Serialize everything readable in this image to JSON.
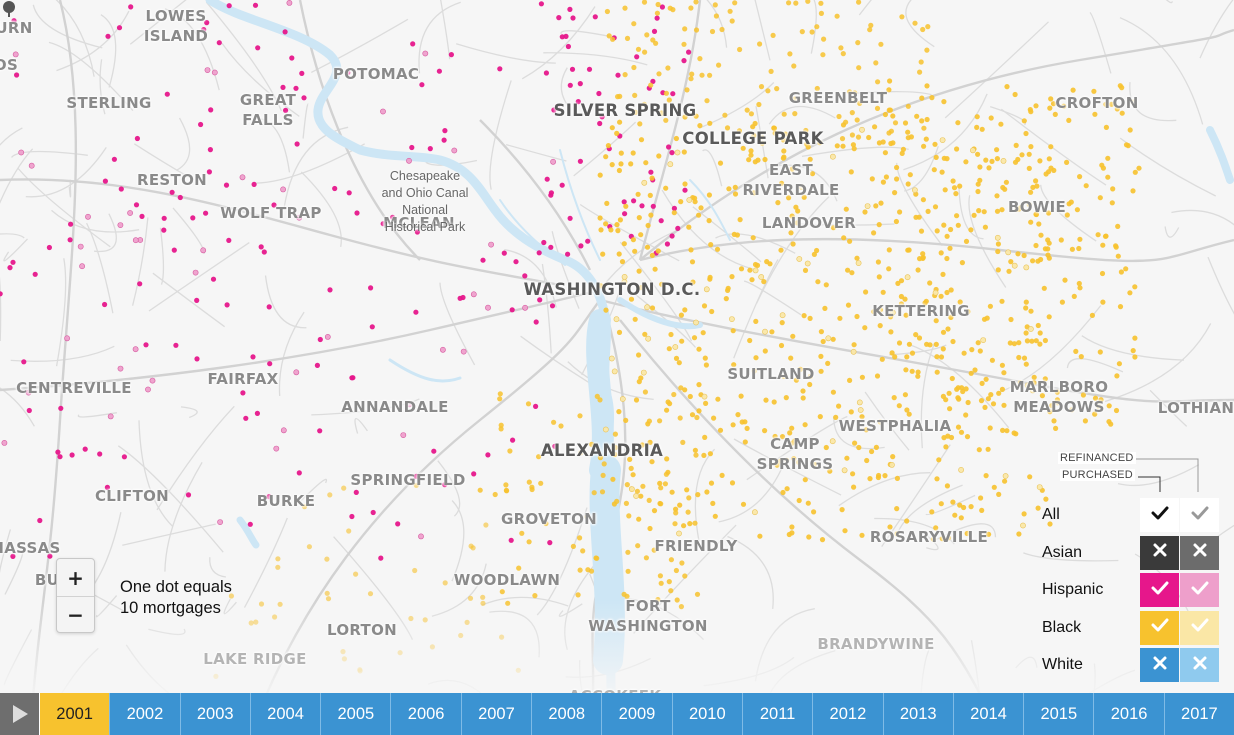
{
  "map": {
    "places": [
      {
        "id": "lowes-island",
        "label": "LOWES\nISLAND",
        "style": "normal"
      },
      {
        "id": "potomac",
        "label": "POTOMAC",
        "style": "normal"
      },
      {
        "id": "sterling",
        "label": "STERLING",
        "style": "normal"
      },
      {
        "id": "great-falls",
        "label": "GREAT\nFALLS",
        "style": "normal"
      },
      {
        "id": "reston",
        "label": "RESTON",
        "style": "normal"
      },
      {
        "id": "wolf-trap",
        "label": "WOLF TRAP",
        "style": "normal"
      },
      {
        "id": "mclean",
        "label": "MCLEAN",
        "style": "normal"
      },
      {
        "id": "silver-spring",
        "label": "SILVER SPRING",
        "style": "big"
      },
      {
        "id": "greenbelt",
        "label": "GREENBELT",
        "style": "normal"
      },
      {
        "id": "crofton",
        "label": "CROFTON",
        "style": "normal"
      },
      {
        "id": "college-park",
        "label": "COLLEGE PARK",
        "style": "big"
      },
      {
        "id": "east-riverdale",
        "label": "EAST\nRIVERDALE",
        "style": "normal"
      },
      {
        "id": "landover",
        "label": "LANDOVER",
        "style": "normal"
      },
      {
        "id": "bowie",
        "label": "BOWIE",
        "style": "normal"
      },
      {
        "id": "washington-dc",
        "label": "WASHINGTON D.C.",
        "style": "big"
      },
      {
        "id": "kettering",
        "label": "KETTERING",
        "style": "normal"
      },
      {
        "id": "centreville",
        "label": "CENTREVILLE",
        "style": "normal"
      },
      {
        "id": "fairfax",
        "label": "FAIRFAX",
        "style": "normal"
      },
      {
        "id": "annandale",
        "label": "ANNANDALE",
        "style": "normal"
      },
      {
        "id": "suitland",
        "label": "SUITLAND",
        "style": "normal"
      },
      {
        "id": "marlboro-meadows",
        "label": "MARLBORO\nMEADOWS",
        "style": "normal"
      },
      {
        "id": "lothian",
        "label": "LOTHIAN",
        "style": "normal"
      },
      {
        "id": "westphalia",
        "label": "WESTPHALIA",
        "style": "normal"
      },
      {
        "id": "alexandria",
        "label": "ALEXANDRIA",
        "style": "big"
      },
      {
        "id": "camp-springs",
        "label": "CAMP\nSPRINGS",
        "style": "normal"
      },
      {
        "id": "springfield",
        "label": "SPRINGFIELD",
        "style": "normal"
      },
      {
        "id": "clifton",
        "label": "CLIFTON",
        "style": "normal"
      },
      {
        "id": "burke",
        "label": "BURKE",
        "style": "normal"
      },
      {
        "id": "groveton",
        "label": "GROVETON",
        "style": "normal"
      },
      {
        "id": "friendly",
        "label": "FRIENDLY",
        "style": "normal"
      },
      {
        "id": "rosaryville",
        "label": "ROSARYVILLE",
        "style": "normal"
      },
      {
        "id": "woodlawn",
        "label": "WOODLAWN",
        "style": "normal"
      },
      {
        "id": "fort-washington",
        "label": "FORT\nWASHINGTON",
        "style": "normal"
      },
      {
        "id": "lorton",
        "label": "LORTON",
        "style": "normal"
      },
      {
        "id": "brandywine",
        "label": "BRANDYWINE",
        "style": "light"
      },
      {
        "id": "lake-ridge",
        "label": "LAKE RIDGE",
        "style": "light"
      },
      {
        "id": "accokeek",
        "label": "ACCOKEEK",
        "style": "light"
      },
      {
        "id": "urn",
        "label": "URN",
        "style": "normal"
      },
      {
        "id": "os",
        "label": "OS",
        "style": "normal"
      },
      {
        "id": "nassas",
        "label": "NASSAS",
        "style": "normal"
      },
      {
        "id": "bu",
        "label": "BU",
        "style": "normal"
      }
    ],
    "park_label": "Chesapeake\nand Ohio Canal\nNational\nHistorical Park",
    "park_icon": "tree-icon"
  },
  "zoom": {
    "in_label": "+",
    "out_label": "−"
  },
  "dot_note": {
    "line1": "One dot equals",
    "line2": "10 mortgages"
  },
  "legend": {
    "refinanced_header": "REFINANCED",
    "purchased_header": "PURCHASED",
    "rows": [
      {
        "label": "All",
        "purchased": "check",
        "refinanced": "check",
        "color": "#ffffff",
        "light_color": "#ffffff"
      },
      {
        "label": "Asian",
        "purchased": "cross",
        "refinanced": "cross",
        "color": "#3a3a3a",
        "light_color": "#6c6c6c"
      },
      {
        "label": "Hispanic",
        "purchased": "check",
        "refinanced": "check",
        "color": "#e6178b",
        "light_color": "#ee9fcb"
      },
      {
        "label": "Black",
        "purchased": "check",
        "refinanced": "check",
        "color": "#f7c22e",
        "light_color": "#fae7a6"
      },
      {
        "label": "White",
        "purchased": "cross",
        "refinanced": "cross",
        "color": "#3b93d2",
        "light_color": "#8fcaee"
      }
    ]
  },
  "timeline": {
    "play_icon": "play-icon",
    "active_year": "2001",
    "years": [
      "2001",
      "2002",
      "2003",
      "2004",
      "2005",
      "2006",
      "2007",
      "2008",
      "2009",
      "2010",
      "2011",
      "2012",
      "2013",
      "2014",
      "2015",
      "2016",
      "2017"
    ]
  },
  "colors": {
    "hispanic": "#e6178b",
    "black": "#f7c22e",
    "water": "#cde6f5",
    "road": "#dcdcdc",
    "active_year": "#f7c22e",
    "year_bar": "#3b93d2"
  }
}
